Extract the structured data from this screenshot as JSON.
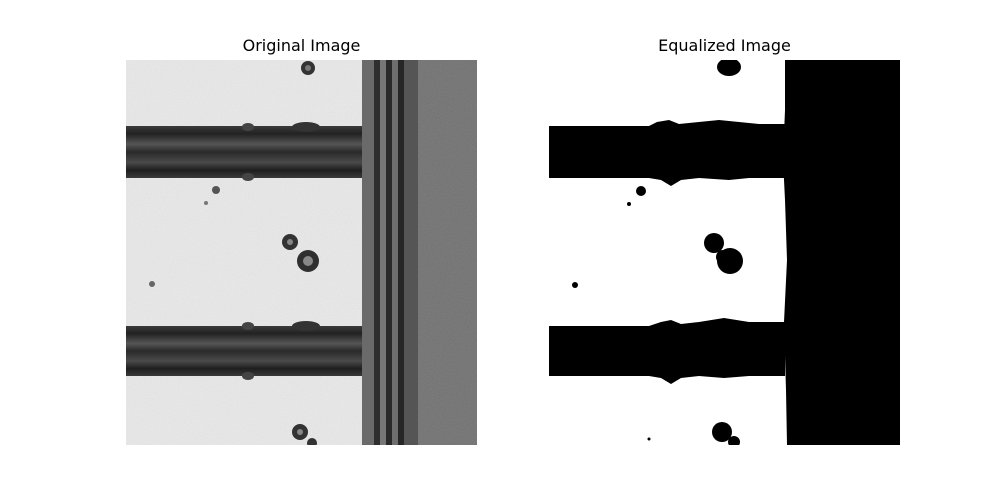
{
  "figure": {
    "panels": [
      {
        "title": "Original Image",
        "image": "grayscale micrograph of horizontal bars crossing a vertical bus line with small particle defects"
      },
      {
        "title": "Equalized Image",
        "image": "binary thresholded version of the same micrograph: black bars and right region on white"
      }
    ]
  }
}
